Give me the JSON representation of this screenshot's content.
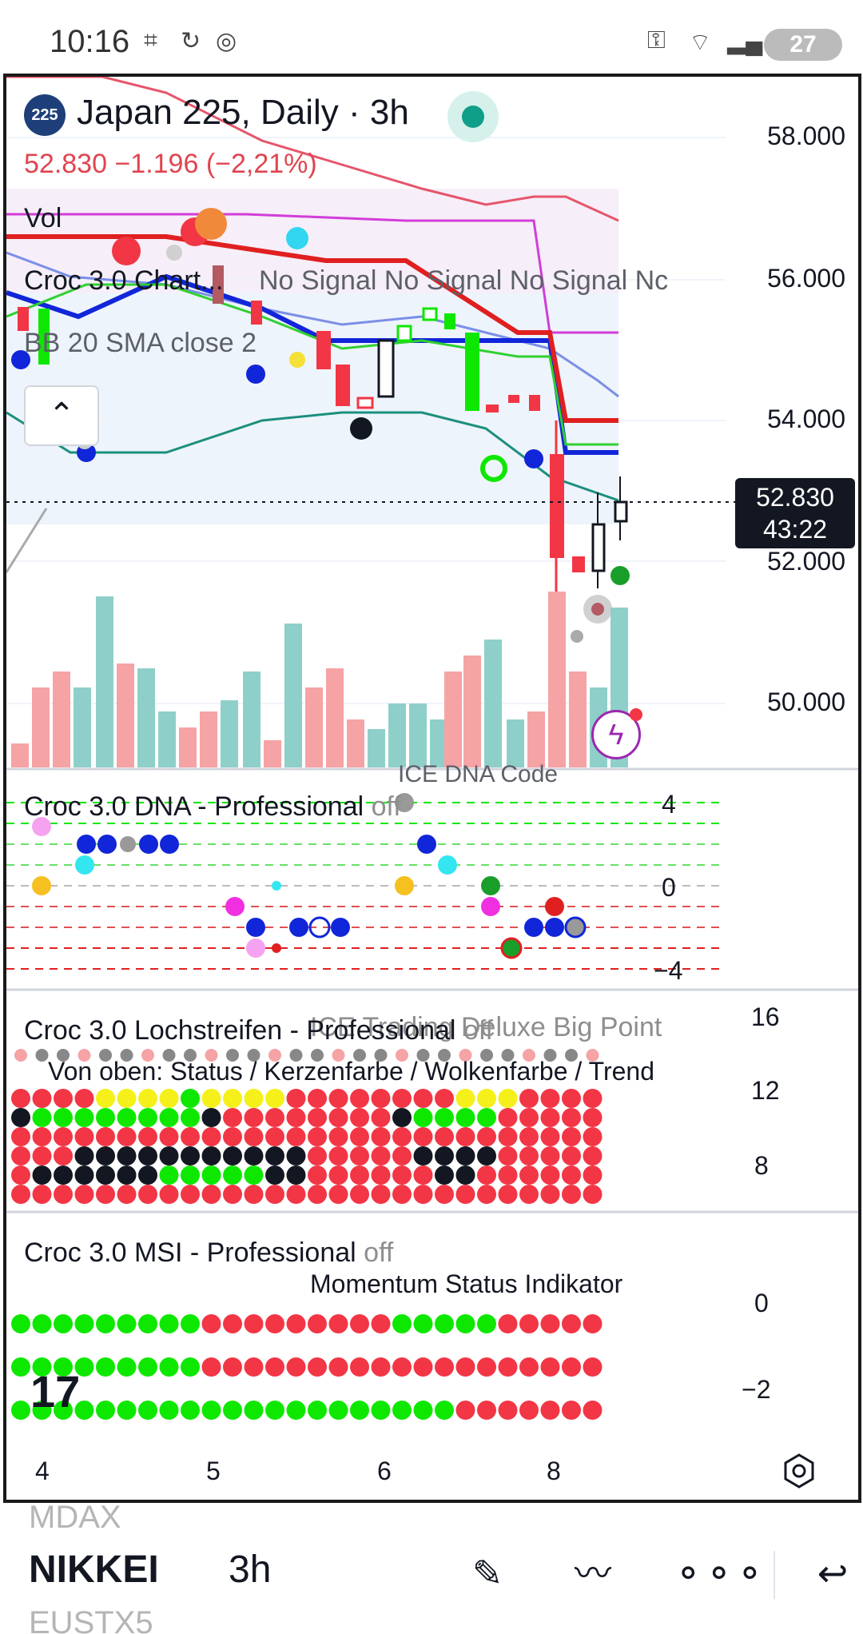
{
  "status_bar": {
    "time": "10:16",
    "battery": "27",
    "left_icons": [
      "screenshot-icon",
      "sync-icon",
      "data-saver-icon"
    ],
    "right_icons": [
      "vpn-key-icon",
      "wifi-icon",
      "signal-icon"
    ]
  },
  "chart": {
    "symbol_badge": "225",
    "title": "Japan 225, Daily · 3h",
    "price_line": "52.830  −1.196 (−2,21%)",
    "price_color": "#e0454f",
    "price_axis": [
      "58.000",
      "56.000",
      "54.000",
      "52.000",
      "50.000"
    ],
    "current_price": "52.830",
    "countdown": "43:22",
    "legends": {
      "vol": "Vol",
      "croc_chart": "Croc 3.0 Chart...",
      "signals": "No Signal  No Signal  No Signal  Nc",
      "bb": "BB 20 SMA close 2"
    }
  },
  "pane_dna": {
    "label_top": "ICE DNA Code",
    "title": "Croc 3.0 DNA - Professional",
    "off": "off",
    "axis": [
      "4",
      "0",
      "−4"
    ]
  },
  "pane_lochstreifen": {
    "ghost": "ICE Trading Deluxe Big Point",
    "title": "Croc 3.0 Lochstreifen - Professional",
    "off": "off",
    "subtitle": "Von oben: Status / Kerzenfarbe / Wolkenfarbe / Trend",
    "axis": [
      "16",
      "12",
      "8"
    ]
  },
  "pane_msi": {
    "title": "Croc 3.0 MSI - Professional",
    "off": "off",
    "subtitle": "Momentum Status Indikator",
    "axis": [
      "0",
      "−2"
    ]
  },
  "x_axis": [
    "4",
    "5",
    "6",
    "8"
  ],
  "logo": "17",
  "bottom_bar": {
    "symbol_prev": "MDAX",
    "symbol": "NIKKEI",
    "symbol_next": "EUSTX5",
    "interval": "3h",
    "tools": [
      "pencil-icon",
      "drawing-lines-icon",
      "more-icon",
      "undo-icon"
    ]
  },
  "colors": {
    "up": "#0ee800",
    "down": "#f23645",
    "volume_up": "#8fcfc9",
    "volume_down": "#f5a3a5",
    "axis_text": "#131722"
  }
}
